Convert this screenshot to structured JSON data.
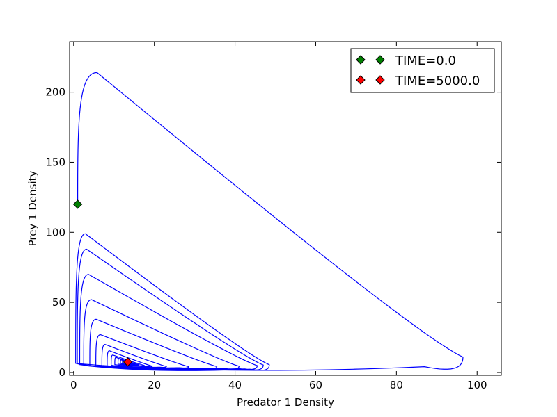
{
  "chart_data": {
    "type": "line",
    "title": "",
    "xlabel": "Predator 1 Density",
    "ylabel": "Prey 1 Density",
    "xlim": [
      -1,
      106
    ],
    "ylim": [
      -2,
      236
    ],
    "xticks": [
      0,
      20,
      40,
      60,
      80,
      100
    ],
    "yticks": [
      0,
      50,
      100,
      150,
      200
    ],
    "xtick_labels": [
      "0",
      "20",
      "40",
      "60",
      "80",
      "100"
    ],
    "ytick_labels": [
      "0",
      "50",
      "100",
      "150",
      "200"
    ],
    "grid": false,
    "legend_position": "top-right",
    "trajectory": {
      "color": "#0000ff",
      "initial": {
        "x": 1.0,
        "y": 120
      },
      "cycles": [
        {
          "x_min": 1.0,
          "y_max": 214,
          "x_max": 96.5,
          "y_min": 0.3
        },
        {
          "x_min": 0.5,
          "y_max": 99,
          "x_max": 48.5,
          "y_min": 0.6
        },
        {
          "x_min": 0.9,
          "y_max": 88,
          "x_max": 47.0,
          "y_min": 1.0
        },
        {
          "x_min": 1.5,
          "y_max": 70,
          "x_max": 45.5,
          "y_min": 1.5
        },
        {
          "x_min": 2.5,
          "y_max": 52,
          "x_max": 41.0,
          "y_min": 2.0
        },
        {
          "x_min": 4.0,
          "y_max": 38,
          "x_max": 35.5,
          "y_min": 2.5
        },
        {
          "x_min": 5.5,
          "y_max": 27,
          "x_max": 28.5,
          "y_min": 3.0
        },
        {
          "x_min": 7.0,
          "y_max": 20,
          "x_max": 23.0,
          "y_min": 3.5
        },
        {
          "x_min": 8.3,
          "y_max": 15.5,
          "x_max": 19.5,
          "y_min": 4.0
        },
        {
          "x_min": 9.3,
          "y_max": 12.5,
          "x_max": 17.5,
          "y_min": 4.7
        },
        {
          "x_min": 10.2,
          "y_max": 10.8,
          "x_max": 16.2,
          "y_min": 5.3
        },
        {
          "x_min": 11.0,
          "y_max": 9.8,
          "x_max": 15.3,
          "y_min": 5.8
        },
        {
          "x_min": 11.6,
          "y_max": 9.0,
          "x_max": 14.7,
          "y_min": 6.3
        },
        {
          "x_min": 12.1,
          "y_max": 8.4,
          "x_max": 14.2,
          "y_min": 6.7
        }
      ],
      "final": {
        "x": 13.4,
        "y": 7.5
      }
    },
    "series": [
      {
        "name": "TIME=0.0",
        "color": "#008000",
        "marker": "diamond",
        "x": [
          1.0
        ],
        "y": [
          120
        ]
      },
      {
        "name": "TIME=5000.0",
        "color": "#ff0000",
        "marker": "diamond",
        "x": [
          13.4
        ],
        "y": [
          7.5
        ]
      }
    ]
  }
}
